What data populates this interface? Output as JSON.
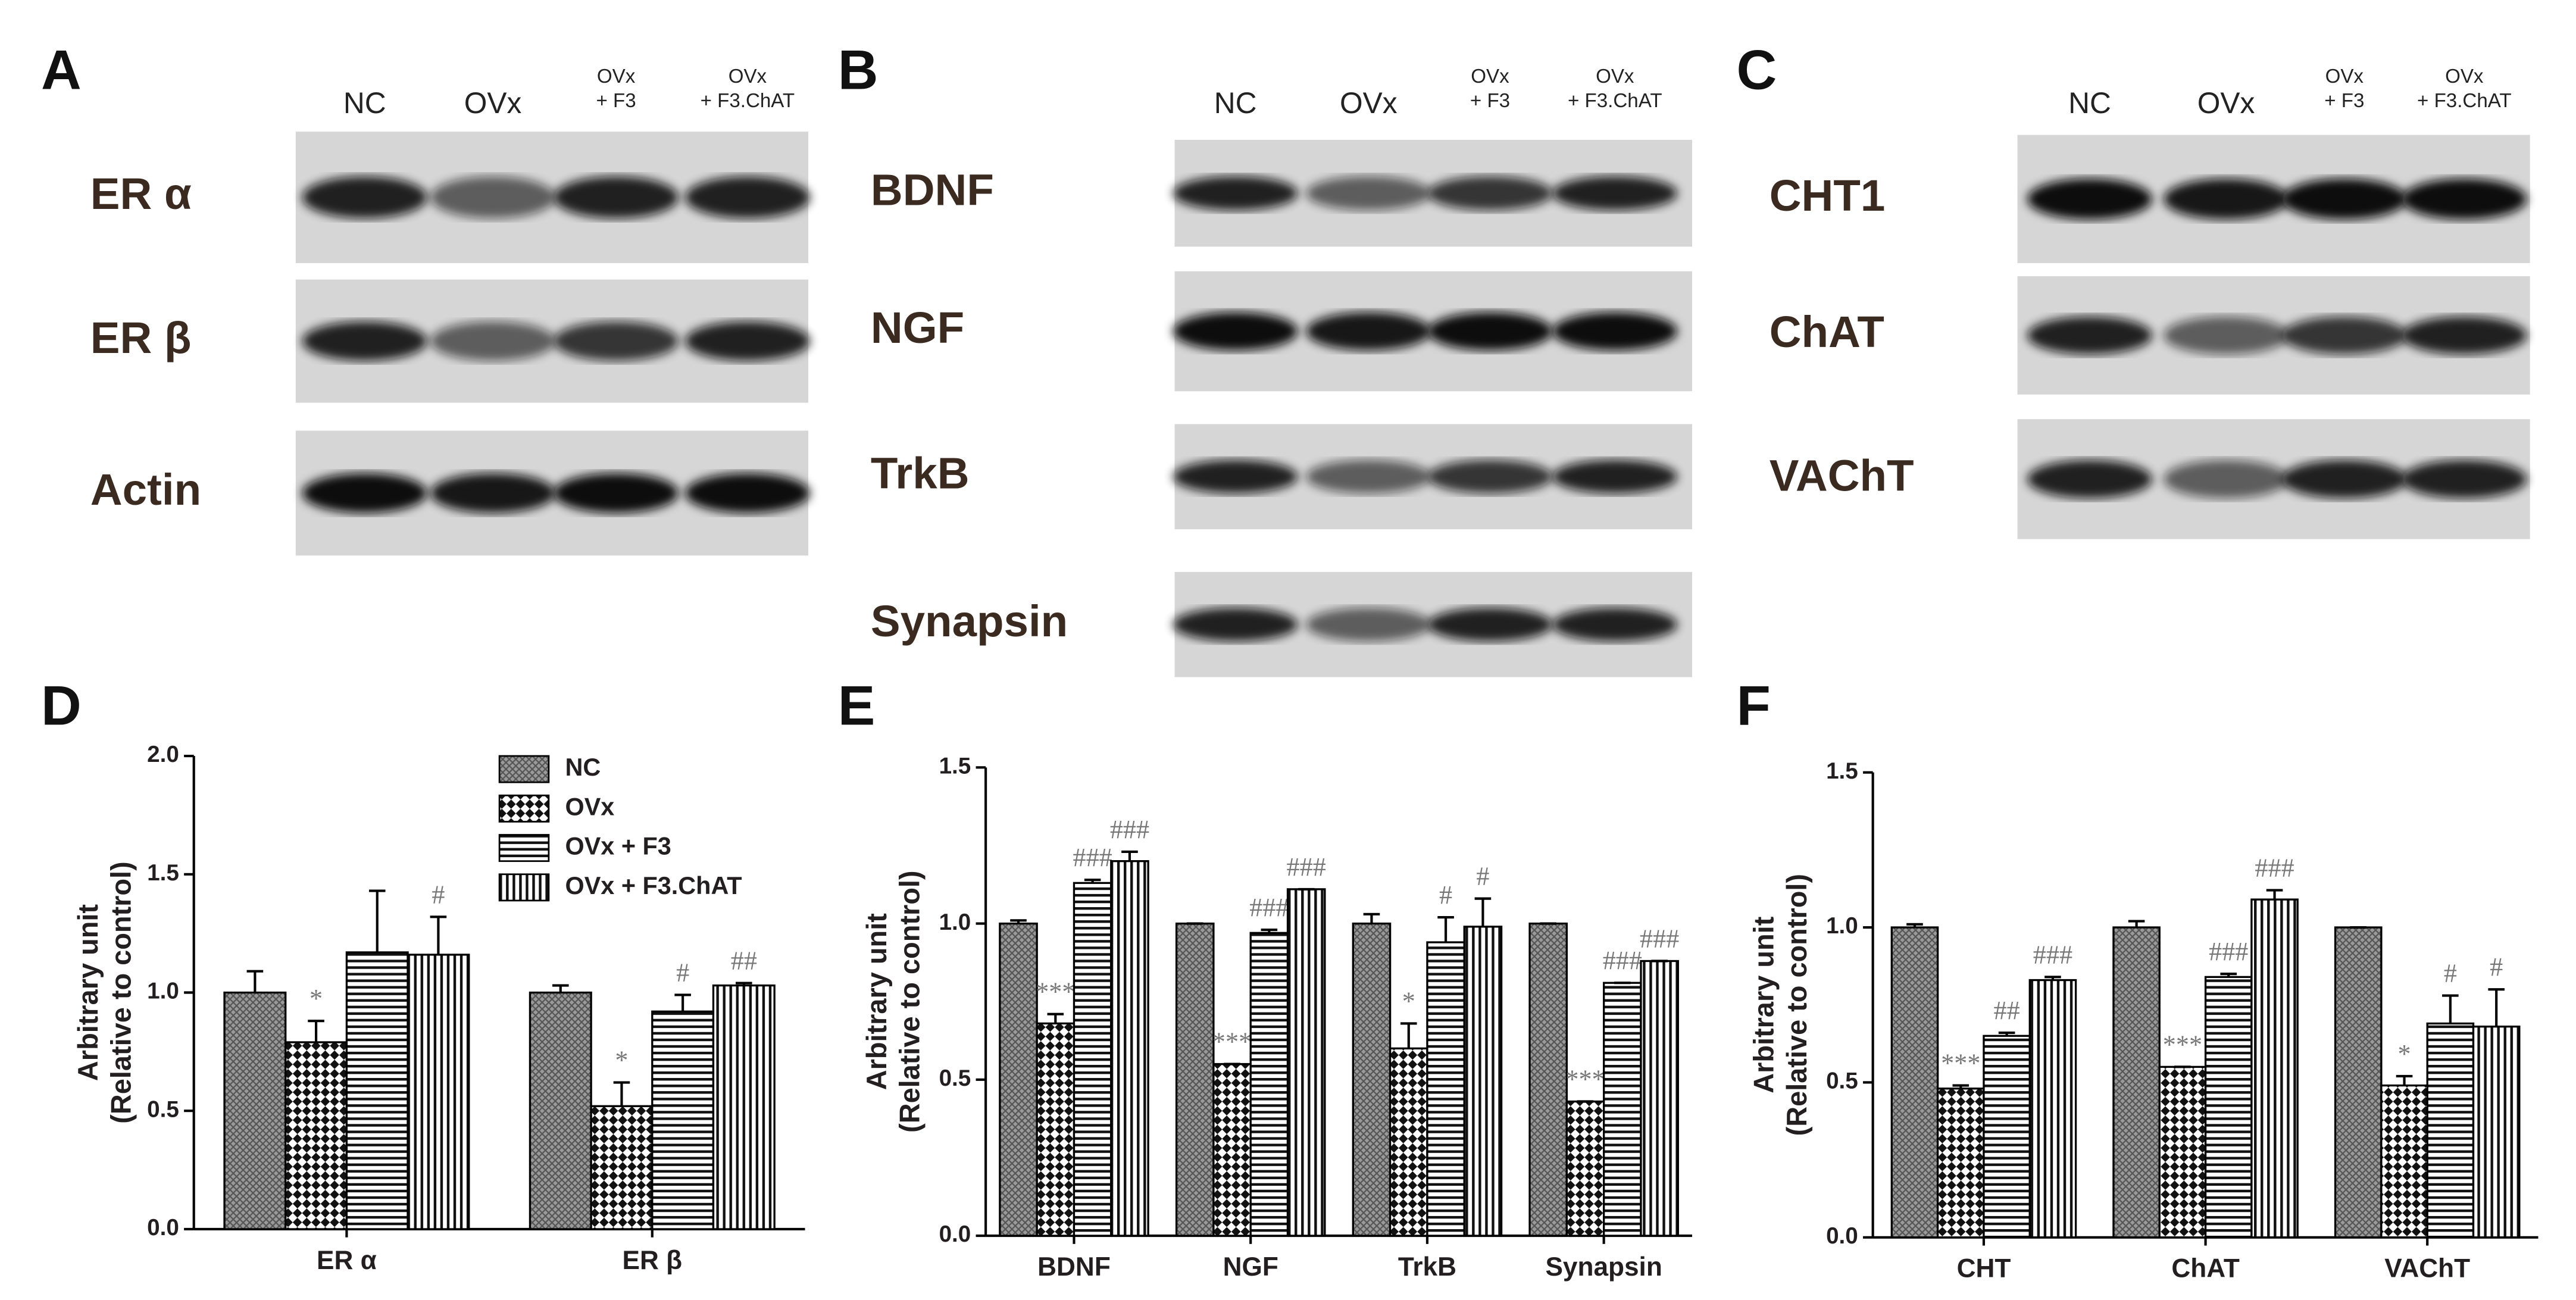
{
  "blots": [
    {
      "letter": "A",
      "lanes": [
        [
          "NC"
        ],
        [
          "OVx"
        ],
        [
          "OVx",
          "+ F3"
        ],
        [
          "OVx",
          "+ F3.ChAT"
        ]
      ],
      "rows": [
        "ER α",
        "ER β",
        "Actin"
      ]
    },
    {
      "letter": "B",
      "lanes": [
        [
          "NC"
        ],
        [
          "OVx"
        ],
        [
          "OVx",
          "+ F3"
        ],
        [
          "OVx",
          "+ F3.ChAT"
        ]
      ],
      "rows": [
        "BDNF",
        "NGF",
        "TrkB",
        "Synapsin"
      ]
    },
    {
      "letter": "C",
      "lanes": [
        [
          "NC"
        ],
        [
          "OVx"
        ],
        [
          "OVx",
          "+ F3"
        ],
        [
          "OVx",
          "+ F3.ChAT"
        ]
      ],
      "rows": [
        "CHT1",
        "ChAT",
        "VAChT"
      ]
    }
  ],
  "chart_data": [
    {
      "type": "bar",
      "panel": "D",
      "ylabel": [
        "Arbitrary unit",
        "(Relative to control)"
      ],
      "categories": [
        "ER α",
        "ER β"
      ],
      "ylim": [
        0,
        2
      ],
      "yticks": [
        {
          "value": 0,
          "label": "0.0"
        },
        {
          "value": 0.5,
          "label": "0.5"
        },
        {
          "value": 1,
          "label": "1.0"
        },
        {
          "value": 1.5,
          "label": "1.5"
        },
        {
          "value": 2,
          "label": "2.0"
        }
      ],
      "legend": true,
      "legend_position": "upper right",
      "series": [
        {
          "name": "NC",
          "pattern": "crosshatch",
          "values": [
            1.0,
            1.0
          ],
          "errors": [
            0.09,
            0.03
          ],
          "annotations": [
            null,
            null
          ]
        },
        {
          "name": "OVx",
          "pattern": "checker",
          "values": [
            0.79,
            0.52
          ],
          "errors": [
            0.09,
            0.1
          ],
          "annotations": [
            "*",
            "*"
          ]
        },
        {
          "name": "OVx + F3",
          "pattern": "hstripe",
          "values": [
            1.17,
            0.92
          ],
          "errors": [
            0.26,
            0.07
          ],
          "annotations": [
            null,
            "#"
          ]
        },
        {
          "name": "OVx + F3.ChAT",
          "pattern": "vstripe",
          "values": [
            1.16,
            1.03
          ],
          "errors": [
            0.16,
            0.01
          ],
          "annotations": [
            "#",
            "##"
          ]
        }
      ]
    },
    {
      "type": "bar",
      "panel": "E",
      "ylabel": [
        "Arbitrary unit",
        "(Relative to control)"
      ],
      "categories": [
        "BDNF",
        "NGF",
        "TrkB",
        "Synapsin"
      ],
      "ylim": [
        0,
        1.5
      ],
      "yticks": [
        {
          "value": 0,
          "label": "0.0"
        },
        {
          "value": 0.5,
          "label": "0.5"
        },
        {
          "value": 1,
          "label": "1.0"
        },
        {
          "value": 1.5,
          "label": "1.5"
        }
      ],
      "legend": false,
      "series": [
        {
          "name": "NC",
          "pattern": "crosshatch",
          "values": [
            1.0,
            1.0,
            1.0,
            1.0
          ],
          "errors": [
            0.01,
            0,
            0.03,
            0
          ],
          "annotations": [
            null,
            null,
            null,
            null
          ]
        },
        {
          "name": "OVx",
          "pattern": "checker",
          "values": [
            0.68,
            0.55,
            0.6,
            0.43
          ],
          "errors": [
            0.03,
            0,
            0.08,
            0
          ],
          "annotations": [
            "***",
            "***",
            "*",
            "***"
          ]
        },
        {
          "name": "OVx + F3",
          "pattern": "hstripe",
          "values": [
            1.13,
            0.97,
            0.94,
            0.81
          ],
          "errors": [
            0.01,
            0.01,
            0.08,
            0
          ],
          "annotations": [
            "###",
            "###",
            "#",
            "###"
          ]
        },
        {
          "name": "OVx + F3.ChAT",
          "pattern": "vstripe",
          "values": [
            1.2,
            1.11,
            0.99,
            0.88
          ],
          "errors": [
            0.03,
            0,
            0.09,
            0
          ],
          "annotations": [
            "###",
            "###",
            "#",
            "###"
          ]
        }
      ]
    },
    {
      "type": "bar",
      "panel": "F",
      "ylabel": [
        "Arbitrary unit",
        "(Relative to control)"
      ],
      "categories": [
        "CHT",
        "ChAT",
        "VAChT"
      ],
      "ylim": [
        0,
        1.5
      ],
      "yticks": [
        {
          "value": 0,
          "label": "0.0"
        },
        {
          "value": 0.5,
          "label": "0.5"
        },
        {
          "value": 1,
          "label": "1.0"
        },
        {
          "value": 1.5,
          "label": "1.5"
        }
      ],
      "legend": false,
      "series": [
        {
          "name": "NC",
          "pattern": "crosshatch",
          "values": [
            1.0,
            1.0,
            1.0
          ],
          "errors": [
            0.01,
            0.02,
            0
          ],
          "annotations": [
            null,
            null,
            null
          ]
        },
        {
          "name": "OVx",
          "pattern": "checker",
          "values": [
            0.48,
            0.55,
            0.49
          ],
          "errors": [
            0.01,
            0,
            0.03
          ],
          "annotations": [
            "***",
            "***",
            "*"
          ]
        },
        {
          "name": "OVx + F3",
          "pattern": "hstripe",
          "values": [
            0.65,
            0.84,
            0.69
          ],
          "errors": [
            0.01,
            0.01,
            0.09
          ],
          "annotations": [
            "##",
            "###",
            "#"
          ]
        },
        {
          "name": "OVx + F3.ChAT",
          "pattern": "vstripe",
          "values": [
            0.83,
            1.09,
            0.68
          ],
          "errors": [
            0.01,
            0.03,
            0.12
          ],
          "annotations": [
            "###",
            "###",
            "#"
          ]
        }
      ]
    }
  ]
}
